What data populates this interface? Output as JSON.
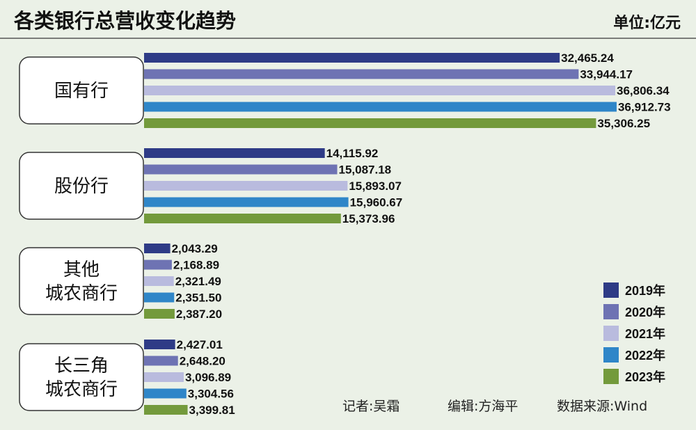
{
  "chart_data": {
    "type": "bar",
    "orientation": "horizontal",
    "title": "各类银行总营收变化趋势",
    "unit": "单位:亿元",
    "categories": [
      "国有行",
      "股份行",
      "其他城农商行",
      "长三角城农商行"
    ],
    "category_lines": [
      [
        "国有行"
      ],
      [
        "股份行"
      ],
      [
        "其他",
        "城农商行"
      ],
      [
        "长三角",
        "城农商行"
      ]
    ],
    "series": [
      {
        "name": "2019年",
        "color": "#2e3b86",
        "values": [
          32465.24,
          14115.92,
          2043.29,
          2427.01
        ],
        "labels": [
          "32,465.24",
          "14,115.92",
          "2,043.29",
          "2,427.01"
        ]
      },
      {
        "name": "2020年",
        "color": "#6e73b3",
        "values": [
          33944.17,
          15087.18,
          2168.89,
          2648.2
        ],
        "labels": [
          "33,944.17",
          "15,087.18",
          "2,168.89",
          "2,648.20"
        ]
      },
      {
        "name": "2021年",
        "color": "#b9bbde",
        "values": [
          36806.34,
          15893.07,
          2321.49,
          3096.89
        ],
        "labels": [
          "36,806.34",
          "15,893.07",
          "2,321.49",
          "3,096.89"
        ]
      },
      {
        "name": "2022年",
        "color": "#2f86c8",
        "values": [
          36912.73,
          15960.67,
          2351.5,
          3304.56
        ],
        "labels": [
          "36,912.73",
          "15,960.67",
          "2,351.50",
          "3,304.56"
        ]
      },
      {
        "name": "2023年",
        "color": "#739a3c",
        "values": [
          35306.25,
          15373.96,
          2387.2,
          3399.81
        ],
        "labels": [
          "35,306.25",
          "15,373.96",
          "2,387.20",
          "3,399.81"
        ]
      }
    ],
    "legend_position": "bottom-right",
    "grid": false
  },
  "credits": {
    "reporter": "记者:吴霜",
    "editor": "编辑:方海平",
    "source": "数据来源:Wind"
  }
}
